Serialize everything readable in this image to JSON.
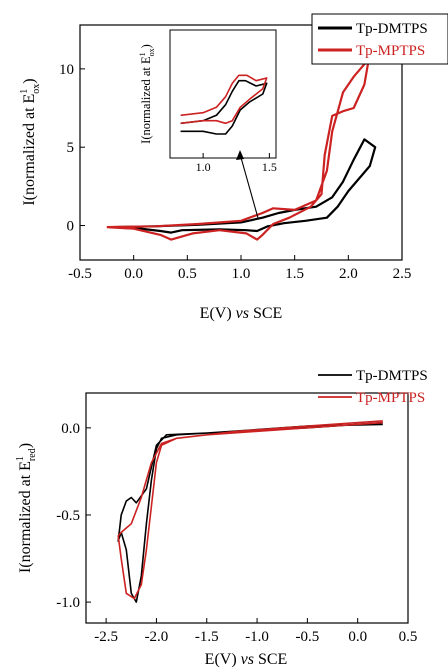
{
  "chart_data": [
    {
      "type": "line",
      "panel": "top",
      "xlabel_prefix": "E(V) ",
      "xlabel_italic": "vs",
      "xlabel_suffix": " SCE",
      "ylabel_main": "I(normalized at E",
      "ylabel_sup": "1",
      "ylabel_sub": "ox",
      "ylabel_close": ")",
      "xlim": [
        -0.5,
        2.5
      ],
      "ylim": [
        -2.2,
        12.8
      ],
      "xticks": [
        "-0.5",
        "0.0",
        "0.5",
        "1.0",
        "1.5",
        "2.0",
        "2.5"
      ],
      "yticks": [
        "0",
        "5",
        "10"
      ],
      "legend_position": "top-right",
      "series": [
        {
          "name": "Tp-DMTPS",
          "color": "#000000",
          "values": [
            [
              -0.2,
              -0.1
            ],
            [
              0.2,
              -0.05
            ],
            [
              0.6,
              0.05
            ],
            [
              1.0,
              0.2
            ],
            [
              1.2,
              0.5
            ],
            [
              1.35,
              0.8
            ],
            [
              1.5,
              1.0
            ],
            [
              1.7,
              1.2
            ],
            [
              1.85,
              1.8
            ],
            [
              1.95,
              2.8
            ],
            [
              2.05,
              4.2
            ],
            [
              2.15,
              5.5
            ],
            [
              2.25,
              5.0
            ],
            [
              2.2,
              3.8
            ],
            [
              2.1,
              3.0
            ],
            [
              2.0,
              2.2
            ],
            [
              1.9,
              1.2
            ],
            [
              1.8,
              0.5
            ],
            [
              1.6,
              0.3
            ],
            [
              1.4,
              0.15
            ],
            [
              1.25,
              -0.05
            ],
            [
              1.15,
              -0.35
            ],
            [
              1.05,
              -0.3
            ],
            [
              0.8,
              -0.25
            ],
            [
              0.45,
              -0.3
            ],
            [
              0.35,
              -0.45
            ],
            [
              0.25,
              -0.35
            ],
            [
              0.0,
              -0.15
            ],
            [
              -0.2,
              -0.1
            ]
          ]
        },
        {
          "name": "Tp-MPTPS",
          "color": "#cc2222",
          "values": [
            [
              -0.25,
              -0.1
            ],
            [
              0.2,
              -0.05
            ],
            [
              0.6,
              0.1
            ],
            [
              1.0,
              0.3
            ],
            [
              1.2,
              0.8
            ],
            [
              1.3,
              1.1
            ],
            [
              1.5,
              1.0
            ],
            [
              1.7,
              1.6
            ],
            [
              1.8,
              3.5
            ],
            [
              1.85,
              6.0
            ],
            [
              1.95,
              8.5
            ],
            [
              2.05,
              9.5
            ],
            [
              2.15,
              10.3
            ],
            [
              2.2,
              11.0
            ],
            [
              2.15,
              9.0
            ],
            [
              2.05,
              7.5
            ],
            [
              1.95,
              7.3
            ],
            [
              1.85,
              7.0
            ],
            [
              1.78,
              4.5
            ],
            [
              1.75,
              2.0
            ],
            [
              1.65,
              1.2
            ],
            [
              1.45,
              0.5
            ],
            [
              1.3,
              0.1
            ],
            [
              1.2,
              -0.6
            ],
            [
              1.15,
              -0.9
            ],
            [
              1.05,
              -0.5
            ],
            [
              0.8,
              -0.3
            ],
            [
              0.55,
              -0.5
            ],
            [
              0.35,
              -0.9
            ],
            [
              0.25,
              -0.6
            ],
            [
              0.0,
              -0.2
            ],
            [
              -0.25,
              -0.1
            ]
          ]
        }
      ]
    },
    {
      "type": "line",
      "panel": "top-inset",
      "ylabel_main": "I(normalized at E",
      "ylabel_sup": "1",
      "ylabel_sub": "ox",
      "ylabel_close": ")",
      "xlim": [
        0.75,
        1.55
      ],
      "ylim": [
        -1.0,
        1.4
      ],
      "xticks": [
        "1.0",
        "1.5"
      ],
      "series": [
        {
          "name": "Tp-DMTPS",
          "color": "#000000",
          "values": [
            [
              0.83,
              -0.35
            ],
            [
              1.0,
              -0.3
            ],
            [
              1.1,
              -0.2
            ],
            [
              1.17,
              0.0
            ],
            [
              1.22,
              0.25
            ],
            [
              1.27,
              0.45
            ],
            [
              1.32,
              0.45
            ],
            [
              1.4,
              0.35
            ],
            [
              1.48,
              0.4
            ],
            [
              1.45,
              0.2
            ],
            [
              1.35,
              0.05
            ],
            [
              1.28,
              -0.1
            ],
            [
              1.22,
              -0.4
            ],
            [
              1.17,
              -0.55
            ],
            [
              1.1,
              -0.55
            ],
            [
              1.0,
              -0.5
            ],
            [
              0.83,
              -0.5
            ]
          ]
        },
        {
          "name": "Tp-MPTPS",
          "color": "#cc2222",
          "values": [
            [
              0.83,
              -0.2
            ],
            [
              1.0,
              -0.15
            ],
            [
              1.1,
              -0.05
            ],
            [
              1.17,
              0.15
            ],
            [
              1.22,
              0.4
            ],
            [
              1.27,
              0.55
            ],
            [
              1.33,
              0.55
            ],
            [
              1.4,
              0.45
            ],
            [
              1.48,
              0.5
            ],
            [
              1.45,
              0.3
            ],
            [
              1.35,
              0.1
            ],
            [
              1.28,
              -0.05
            ],
            [
              1.22,
              -0.3
            ],
            [
              1.17,
              -0.35
            ],
            [
              1.1,
              -0.3
            ],
            [
              1.0,
              -0.3
            ],
            [
              0.83,
              -0.35
            ]
          ]
        }
      ]
    },
    {
      "type": "line",
      "panel": "bottom",
      "xlabel_prefix": "E(V) ",
      "xlabel_italic": "vs",
      "xlabel_suffix": " SCE",
      "ylabel_main": "I(normalized at E",
      "ylabel_sup": "1",
      "ylabel_sub": "red",
      "ylabel_close": ")",
      "xlim": [
        -2.7,
        0.5
      ],
      "ylim": [
        -1.12,
        0.2
      ],
      "xticks": [
        "-2.5",
        "-2.0",
        "-1.5",
        "-1.0",
        "-0.5",
        "0.0",
        "0.5"
      ],
      "yticks": [
        "0.0",
        "-0.5",
        "-1.0"
      ],
      "legend_position": "top-right",
      "series": [
        {
          "name": "Tp-DMTPS",
          "color": "#000000",
          "values": [
            [
              0.25,
              0.03
            ],
            [
              -0.5,
              0.0
            ],
            [
              -1.2,
              -0.02
            ],
            [
              -1.8,
              -0.04
            ],
            [
              -1.95,
              -0.06
            ],
            [
              -2.0,
              -0.12
            ],
            [
              -2.05,
              -0.3
            ],
            [
              -2.1,
              -0.55
            ],
            [
              -2.15,
              -0.85
            ],
            [
              -2.2,
              -1.0
            ],
            [
              -2.25,
              -0.95
            ],
            [
              -2.3,
              -0.7
            ],
            [
              -2.35,
              -0.6
            ],
            [
              -2.38,
              -0.65
            ],
            [
              -2.35,
              -0.5
            ],
            [
              -2.3,
              -0.42
            ],
            [
              -2.25,
              -0.4
            ],
            [
              -2.2,
              -0.43
            ],
            [
              -2.1,
              -0.35
            ],
            [
              -2.0,
              -0.1
            ],
            [
              -1.9,
              -0.04
            ],
            [
              -1.5,
              -0.03
            ],
            [
              -1.0,
              -0.01
            ],
            [
              -0.5,
              0.01
            ],
            [
              0.25,
              0.02
            ]
          ]
        },
        {
          "name": "Tp-MPTPS",
          "color": "#cc2222",
          "values": [
            [
              0.25,
              0.04
            ],
            [
              -0.5,
              0.01
            ],
            [
              -1.2,
              -0.02
            ],
            [
              -1.8,
              -0.06
            ],
            [
              -1.95,
              -0.1
            ],
            [
              -2.0,
              -0.2
            ],
            [
              -2.05,
              -0.45
            ],
            [
              -2.1,
              -0.7
            ],
            [
              -2.15,
              -0.9
            ],
            [
              -2.22,
              -0.98
            ],
            [
              -2.3,
              -0.95
            ],
            [
              -2.35,
              -0.75
            ],
            [
              -2.38,
              -0.62
            ],
            [
              -2.35,
              -0.6
            ],
            [
              -2.25,
              -0.55
            ],
            [
              -2.15,
              -0.4
            ],
            [
              -2.05,
              -0.2
            ],
            [
              -1.95,
              -0.09
            ],
            [
              -1.8,
              -0.06
            ],
            [
              -1.5,
              -0.04
            ],
            [
              -1.0,
              -0.02
            ],
            [
              -0.5,
              0.0
            ],
            [
              0.25,
              0.03
            ]
          ]
        }
      ]
    }
  ]
}
